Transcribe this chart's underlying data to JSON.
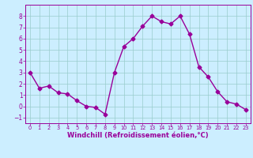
{
  "x": [
    0,
    1,
    2,
    3,
    4,
    5,
    6,
    7,
    8,
    9,
    10,
    11,
    12,
    13,
    14,
    15,
    16,
    17,
    18,
    19,
    20,
    21,
    22,
    23
  ],
  "y": [
    3.0,
    1.6,
    1.8,
    1.2,
    1.1,
    0.5,
    0.0,
    -0.1,
    -0.7,
    3.0,
    5.3,
    6.0,
    7.1,
    8.0,
    7.5,
    7.3,
    8.0,
    6.4,
    3.5,
    2.6,
    1.3,
    0.4,
    0.2,
    -0.3
  ],
  "line_color": "#990099",
  "marker": "D",
  "markersize": 2.5,
  "linewidth": 1.0,
  "bg_color": "#cceeff",
  "grid_color": "#99cccc",
  "xlabel": "Windchill (Refroidissement éolien,°C)",
  "xlabel_color": "#990099",
  "tick_color": "#990099",
  "ylim": [
    -1.5,
    9.0
  ],
  "xlim": [
    -0.5,
    23.5
  ],
  "yticks": [
    -1,
    0,
    1,
    2,
    3,
    4,
    5,
    6,
    7,
    8
  ],
  "xticks": [
    0,
    1,
    2,
    3,
    4,
    5,
    6,
    7,
    8,
    9,
    10,
    11,
    12,
    13,
    14,
    15,
    16,
    17,
    18,
    19,
    20,
    21,
    22,
    23
  ],
  "spine_color": "#990099"
}
